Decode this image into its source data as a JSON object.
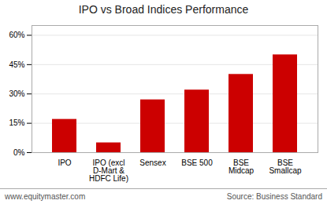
{
  "chart_data": {
    "type": "bar",
    "title": "IPO vs Broad Indices Performance",
    "categories": [
      "IPO",
      "IPO (excl\nD-Mart &\nHDFC Life)",
      "Sensex",
      "BSE 500",
      "BSE\nMidcap",
      "BSE\nSmallcap"
    ],
    "values": [
      17,
      5,
      27,
      32,
      40,
      50
    ],
    "color": "#cc0000",
    "ylim": [
      0,
      65
    ],
    "yticks": [
      {
        "value": 0,
        "label": "0%"
      },
      {
        "value": 15,
        "label": "15%"
      },
      {
        "value": 30,
        "label": "30%"
      },
      {
        "value": 45,
        "label": "45%"
      },
      {
        "value": 60,
        "label": "60%"
      }
    ],
    "grid": true,
    "annotations": [
      "www.equitymaster.com",
      "Source: Business Standard"
    ]
  }
}
